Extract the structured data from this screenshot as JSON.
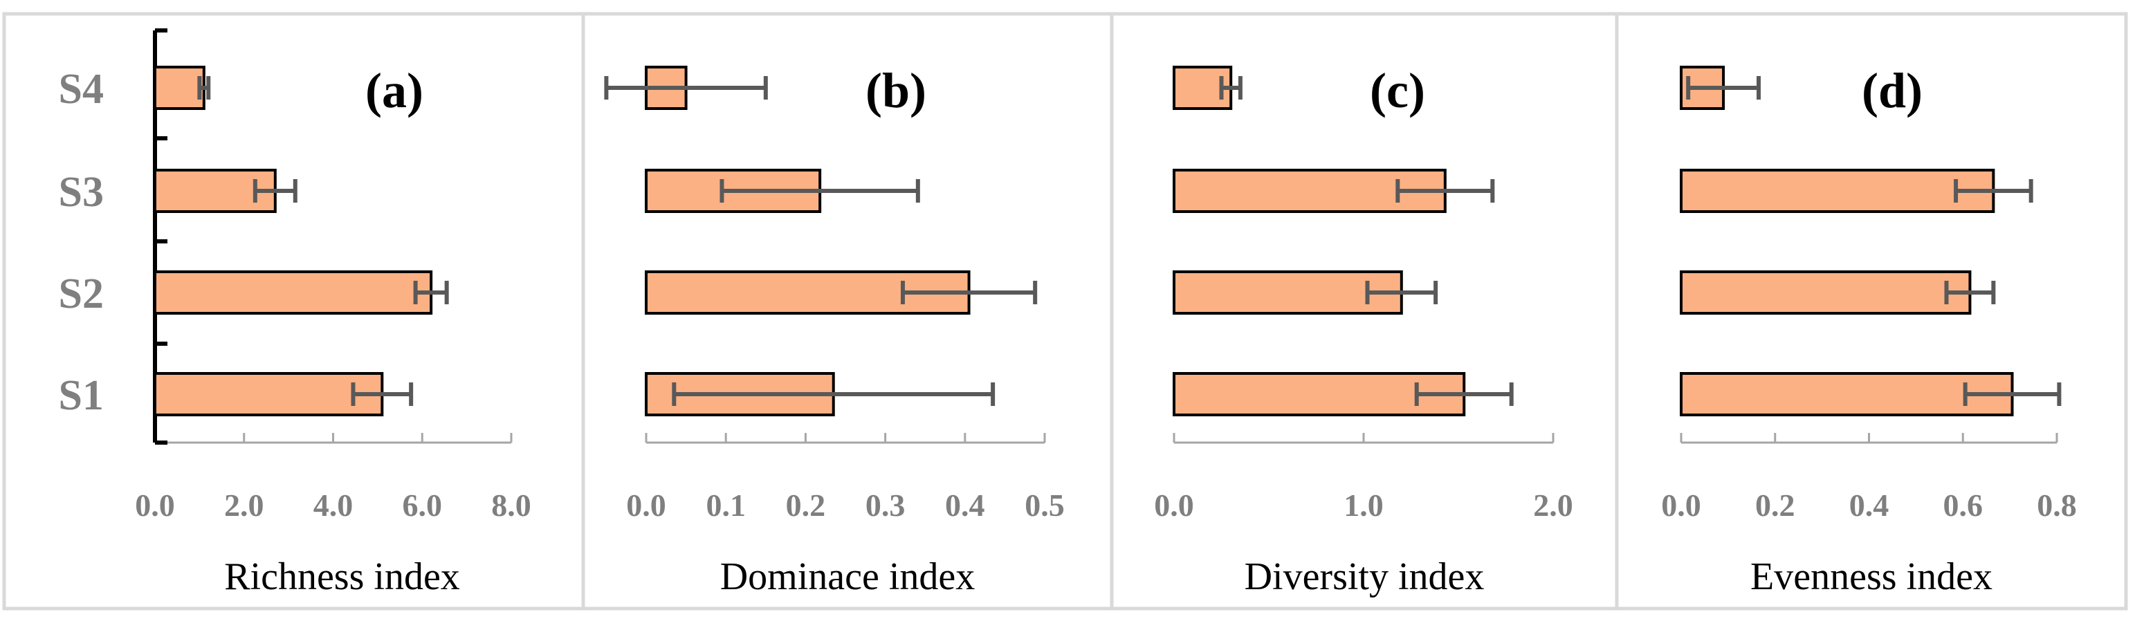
{
  "chart_data": [
    {
      "type": "bar",
      "orientation": "horizontal",
      "panel_label": "(a)",
      "categories": [
        "S1",
        "S2",
        "S3",
        "S4"
      ],
      "values": [
        5.1,
        6.2,
        2.7,
        1.1
      ],
      "error": [
        [
          0.65,
          0.65
        ],
        [
          0.35,
          0.35
        ],
        [
          0.45,
          0.45
        ],
        [
          0.1,
          0.1
        ]
      ],
      "xlabel": "Richness index",
      "xlim": [
        0,
        8
      ],
      "xticks": [
        "0.0",
        "2.0",
        "4.0",
        "6.0",
        "8.0"
      ],
      "ylim": null
    },
    {
      "type": "bar",
      "orientation": "horizontal",
      "panel_label": "(b)",
      "categories": [
        "S1",
        "S2",
        "S3",
        "S4"
      ],
      "values": [
        0.235,
        0.405,
        0.218,
        0.05
      ],
      "error": [
        [
          0.2,
          0.2
        ],
        [
          0.083,
          0.083
        ],
        [
          0.123,
          0.123
        ],
        [
          0.1,
          0.1
        ]
      ],
      "xlabel": "Dominace index",
      "xlim": [
        0,
        0.5
      ],
      "xticks": [
        "0.0",
        "0.1",
        "0.2",
        "0.3",
        "0.4",
        "0.5"
      ]
    },
    {
      "type": "bar",
      "orientation": "horizontal",
      "panel_label": "(c)",
      "categories": [
        "S1",
        "S2",
        "S3",
        "S4"
      ],
      "values": [
        1.53,
        1.2,
        1.43,
        0.3
      ],
      "error": [
        [
          0.25,
          0.25
        ],
        [
          0.18,
          0.18
        ],
        [
          0.25,
          0.25
        ],
        [
          0.05,
          0.05
        ]
      ],
      "xlabel": "Diversity index",
      "xlim": [
        0,
        2
      ],
      "xticks": [
        "0.0",
        "1.0",
        "2.0"
      ]
    },
    {
      "type": "bar",
      "orientation": "horizontal",
      "panel_label": "(d)",
      "categories": [
        "S1",
        "S2",
        "S3",
        "S4"
      ],
      "values": [
        0.705,
        0.615,
        0.665,
        0.09
      ],
      "error": [
        [
          0.1,
          0.1
        ],
        [
          0.05,
          0.05
        ],
        [
          0.08,
          0.08
        ],
        [
          0.075,
          0.075
        ]
      ],
      "xlabel": "Evenness index",
      "xlim": [
        0,
        0.8
      ],
      "xticks": [
        "0.0",
        "0.2",
        "0.4",
        "0.6",
        "0.8"
      ]
    }
  ],
  "colors": {
    "bar_fill": "#fcb184",
    "bar_stroke": "#000000",
    "error_bar": "#595959",
    "tick_label": "#7f7f7f",
    "panel_border": "#d9d9d9"
  }
}
